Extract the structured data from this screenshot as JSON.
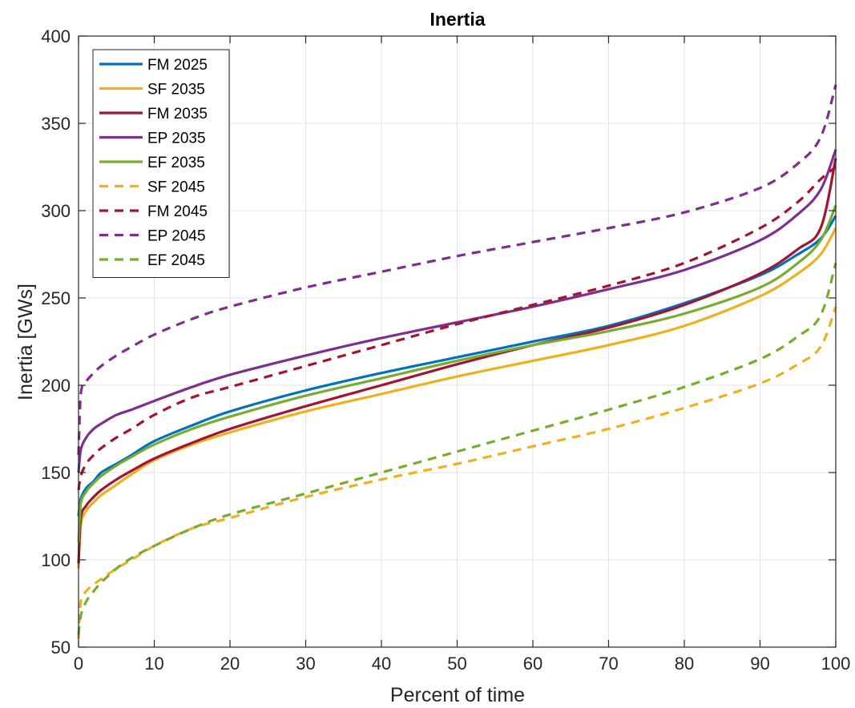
{
  "chart_data": {
    "type": "line",
    "title": "Inertia",
    "xlabel": "Percent of time",
    "ylabel": "Inertia [GWs]",
    "xlim": [
      0,
      100
    ],
    "ylim": [
      50,
      400
    ],
    "xticks": [
      0,
      10,
      20,
      30,
      40,
      50,
      60,
      70,
      80,
      90,
      100
    ],
    "yticks": [
      50,
      100,
      150,
      200,
      250,
      300,
      350,
      400
    ],
    "grid": true,
    "legend_position": "top-left",
    "series": [
      {
        "name": "FM 2025",
        "color": "#0072BD",
        "style": "solid",
        "x": [
          0,
          0.3,
          1,
          2,
          3,
          5,
          7,
          10,
          15,
          20,
          30,
          40,
          50,
          60,
          70,
          80,
          90,
          95,
          98,
          100
        ],
        "y": [
          125,
          135,
          141,
          145,
          150,
          155,
          160,
          168,
          177,
          185,
          197,
          207,
          216,
          225,
          234,
          247,
          263,
          275,
          284,
          297
        ]
      },
      {
        "name": "SF 2035",
        "color": "#EDB120",
        "style": "solid",
        "x": [
          0,
          0.3,
          1,
          2,
          3,
          5,
          7,
          10,
          15,
          20,
          30,
          40,
          50,
          60,
          70,
          80,
          90,
          95,
          98,
          100
        ],
        "y": [
          95,
          120,
          128,
          133,
          137,
          143,
          149,
          157,
          166,
          173,
          185,
          195,
          205,
          214,
          223,
          234,
          251,
          264,
          275,
          290
        ]
      },
      {
        "name": "FM 2035",
        "color": "#A2142F",
        "style": "solid",
        "x": [
          0,
          0.3,
          1,
          2,
          3,
          5,
          7,
          10,
          15,
          20,
          30,
          40,
          50,
          60,
          70,
          80,
          90,
          95,
          98,
          100
        ],
        "y": [
          98,
          124,
          131,
          136,
          140,
          146,
          151,
          158,
          167,
          175,
          188,
          200,
          212,
          223,
          233,
          246,
          264,
          278,
          290,
          330
        ]
      },
      {
        "name": "EP 2035",
        "color": "#7E2F8E",
        "style": "solid",
        "x": [
          0,
          0.3,
          1,
          2,
          3,
          5,
          7,
          10,
          15,
          20,
          30,
          40,
          50,
          60,
          70,
          80,
          90,
          95,
          98,
          100
        ],
        "y": [
          150,
          163,
          170,
          175,
          178,
          183,
          186,
          191,
          199,
          206,
          217,
          227,
          236,
          245,
          255,
          266,
          283,
          298,
          312,
          335
        ]
      },
      {
        "name": "EF 2035",
        "color": "#77AC30",
        "style": "solid",
        "x": [
          0,
          0.3,
          1,
          2,
          3,
          5,
          7,
          10,
          15,
          20,
          30,
          40,
          50,
          60,
          70,
          80,
          90,
          95,
          98,
          100
        ],
        "y": [
          110,
          132,
          139,
          144,
          148,
          154,
          159,
          166,
          175,
          182,
          194,
          204,
          214,
          223,
          231,
          241,
          256,
          270,
          283,
          303
        ]
      },
      {
        "name": "SF 2045",
        "color": "#EDB120",
        "style": "dashed",
        "x": [
          0,
          0.3,
          1,
          2,
          3,
          5,
          7,
          10,
          15,
          20,
          30,
          40,
          50,
          60,
          70,
          80,
          90,
          95,
          98,
          100
        ],
        "y": [
          55,
          76,
          82,
          86,
          89,
          95,
          100,
          108,
          118,
          124,
          136,
          146,
          155,
          165,
          175,
          187,
          201,
          212,
          222,
          245
        ]
      },
      {
        "name": "FM 2045",
        "color": "#A2142F",
        "style": "dashed",
        "x": [
          0,
          0.3,
          1,
          2,
          3,
          5,
          7,
          10,
          15,
          20,
          30,
          40,
          50,
          60,
          70,
          80,
          90,
          95,
          98,
          100
        ],
        "y": [
          140,
          148,
          155,
          160,
          164,
          170,
          175,
          183,
          193,
          199,
          211,
          223,
          235,
          246,
          257,
          270,
          290,
          305,
          318,
          325
        ]
      },
      {
        "name": "EP 2045",
        "color": "#7E2F8E",
        "style": "dashed",
        "x": [
          0,
          0.3,
          1,
          2,
          3,
          5,
          7,
          10,
          15,
          20,
          30,
          40,
          50,
          60,
          70,
          80,
          90,
          95,
          98,
          100
        ],
        "y": [
          160,
          195,
          202,
          207,
          211,
          217,
          222,
          229,
          238,
          245,
          256,
          265,
          274,
          282,
          290,
          299,
          313,
          327,
          342,
          372
        ]
      },
      {
        "name": "EF 2045",
        "color": "#77AC30",
        "style": "dashed",
        "x": [
          0,
          0.3,
          1,
          2,
          3,
          5,
          7,
          10,
          15,
          20,
          30,
          40,
          50,
          60,
          70,
          80,
          90,
          95,
          98,
          100
        ],
        "y": [
          57,
          68,
          76,
          82,
          87,
          95,
          101,
          108,
          118,
          126,
          138,
          150,
          162,
          174,
          186,
          199,
          215,
          228,
          240,
          270
        ]
      }
    ]
  }
}
